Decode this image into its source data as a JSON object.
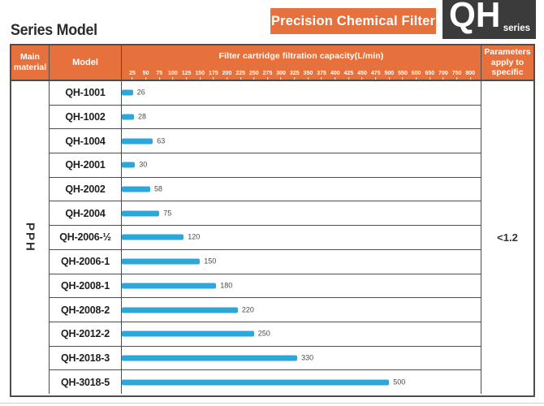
{
  "page": {
    "title": "Series Model",
    "badge": "Precision Chemical Filter",
    "logo": {
      "main": "QH",
      "sub": "series"
    }
  },
  "table": {
    "headers": {
      "main_material": "Main material",
      "model": "Model",
      "capacity": "Filter cartridge filtration capacity(L/min)",
      "parameters": "Parameters apply to specific"
    },
    "main_material_value": "PPH",
    "parameter_value": "<1.2"
  },
  "chart_data": {
    "type": "bar",
    "orientation": "horizontal",
    "title": "Filter cartridge filtration capacity(L/min)",
    "xlabel": "Filter cartridge filtration capacity(L/min)",
    "ylabel": "Model",
    "ticks": [
      25,
      50,
      75,
      100,
      125,
      150,
      175,
      200,
      225,
      250,
      275,
      300,
      325,
      350,
      375,
      400,
      425,
      450,
      475,
      500,
      550,
      600,
      650,
      700,
      750,
      800
    ],
    "axis_note": "ticks step 25 from 25 to 500, then step 50 from 500 to 800, equal visual spacing",
    "categories": [
      "QH-1001",
      "QH-1002",
      "QH-1004",
      "QH-2001",
      "QH-2002",
      "QH-2004",
      "QH-2006-½",
      "QH-2006-1",
      "QH-2008-1",
      "QH-2008-2",
      "QH-2012-2",
      "QH-2018-3",
      "QH-3018-5"
    ],
    "values": [
      26,
      28,
      63,
      30,
      58,
      75,
      120,
      150,
      180,
      220,
      250,
      330,
      500
    ],
    "bar_color": "#2ba7dc",
    "legend": null,
    "grid": false
  },
  "colors": {
    "accent_orange": "#e7713c",
    "logo_dark": "#3b3b3b",
    "bar_blue": "#2ba7dc",
    "border_gray": "#4d4d4d"
  }
}
